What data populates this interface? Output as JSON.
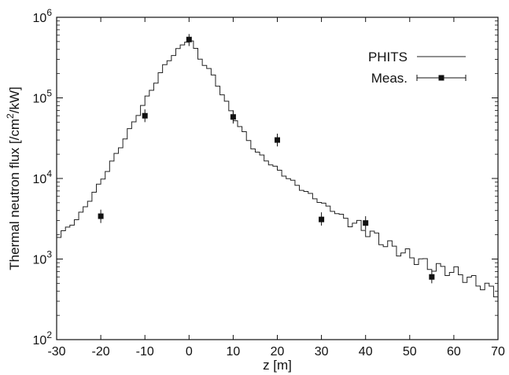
{
  "chart_data": {
    "type": "line",
    "title": "",
    "xlabel": "z [m]",
    "ylabel_main": "Thermal neutron flux [/cm",
    "ylabel_sup": "2",
    "ylabel_tail": "/kW]",
    "xlim": [
      -30,
      70
    ],
    "ylim": [
      100,
      1000000
    ],
    "yscale": "log",
    "grid": false,
    "legend_position": "top-right",
    "x_ticks": [
      "-30",
      "-20",
      "-10",
      "0",
      "10",
      "20",
      "30",
      "40",
      "50",
      "60",
      "70"
    ],
    "y_ticks": [
      {
        "base": "10",
        "exp": "2"
      },
      {
        "base": "10",
        "exp": "3"
      },
      {
        "base": "10",
        "exp": "4"
      },
      {
        "base": "10",
        "exp": "5"
      },
      {
        "base": "10",
        "exp": "6"
      }
    ],
    "series": [
      {
        "name": "PHITS",
        "style": "step",
        "color": "#222222",
        "x": [
          -30,
          -25,
          -20,
          -15,
          -10,
          -5,
          -1,
          0,
          1,
          2,
          5,
          10,
          15,
          20,
          25,
          30,
          35,
          40,
          45,
          50,
          55,
          60,
          65,
          70
        ],
        "y": [
          1800,
          3300,
          9000,
          28000,
          90000,
          280000,
          480000,
          550000,
          470000,
          330000,
          210000,
          60000,
          22000,
          13000,
          7800,
          5000,
          3300,
          2300,
          1500,
          1100,
          800,
          700,
          520,
          380
        ]
      },
      {
        "name": "Meas.",
        "style": "points-errorbars",
        "color": "#111111",
        "points": [
          {
            "x": -20,
            "y": 3400,
            "ylo": 2800,
            "yhi": 4100
          },
          {
            "x": -10,
            "y": 60000,
            "ylo": 50000,
            "yhi": 72000
          },
          {
            "x": 0,
            "y": 530000,
            "ylo": 440000,
            "yhi": 620000
          },
          {
            "x": 10,
            "y": 58000,
            "ylo": 48000,
            "yhi": 70000
          },
          {
            "x": 20,
            "y": 30000,
            "ylo": 25000,
            "yhi": 36000
          },
          {
            "x": 30,
            "y": 3100,
            "ylo": 2600,
            "yhi": 3800
          },
          {
            "x": 40,
            "y": 2800,
            "ylo": 2300,
            "yhi": 3400
          },
          {
            "x": 55,
            "y": 600,
            "ylo": 500,
            "yhi": 720
          }
        ]
      }
    ]
  }
}
